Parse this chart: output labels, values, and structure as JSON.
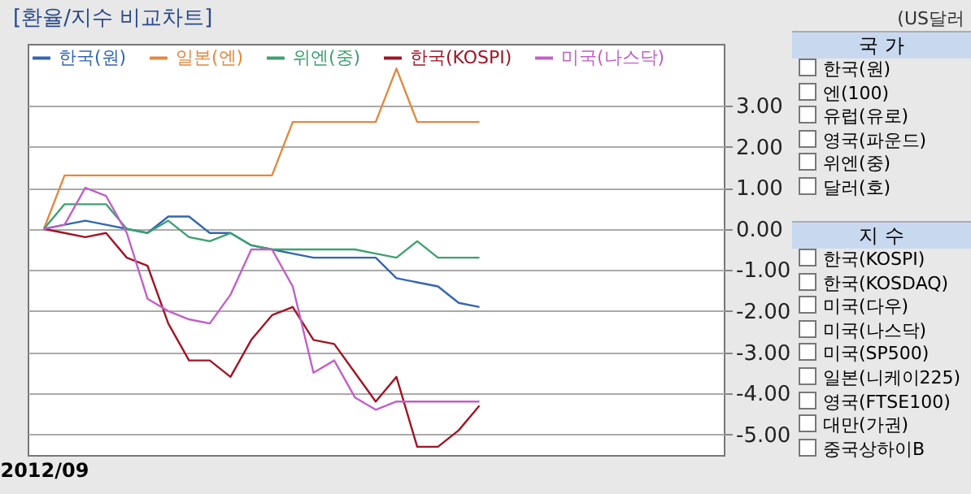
{
  "chart_data": [
    {
      "type": "line",
      "title": "[환율/지수 비교차트]",
      "annotations": [
        "(US달러"
      ],
      "categories": [
        "2012/09",
        null,
        null,
        null,
        null,
        null,
        null,
        null,
        null,
        null,
        null,
        null,
        null,
        null,
        null,
        null,
        null,
        null,
        null,
        null,
        null,
        null,
        null,
        null,
        null,
        null,
        null,
        null,
        null,
        null,
        null,
        null,
        null
      ],
      "series": [
        {
          "name": "한국(원)",
          "color": "#3366b0",
          "values": [
            0,
            0.1,
            0.2,
            0.1,
            0,
            -0.1,
            0.3,
            0.3,
            -0.1,
            -0.1,
            -0.4,
            -0.5,
            -0.6,
            -0.7,
            -0.7,
            -0.7,
            -0.7,
            -1.2,
            -1.3,
            -1.4,
            -1.8,
            -1.9,
            null,
            null,
            null,
            null,
            null,
            null,
            null,
            null,
            null,
            null,
            null
          ]
        },
        {
          "name": "일본(엔)",
          "color": "#e08a40",
          "values": [
            0,
            1.3,
            1.3,
            1.3,
            1.3,
            1.3,
            1.3,
            1.3,
            1.3,
            1.3,
            1.3,
            1.3,
            2.6,
            2.6,
            2.6,
            2.6,
            2.6,
            3.9,
            2.6,
            2.6,
            2.6,
            2.6,
            null,
            null,
            null,
            null,
            null,
            null,
            null,
            null,
            null,
            null,
            null
          ]
        },
        {
          "name": "위엔(중)",
          "color": "#3fa070",
          "values": [
            0,
            0.6,
            0.6,
            0.6,
            0,
            -0.1,
            0.2,
            -0.2,
            -0.3,
            -0.1,
            -0.4,
            -0.5,
            -0.5,
            -0.5,
            -0.5,
            -0.5,
            -0.6,
            -0.7,
            -0.3,
            -0.7,
            -0.7,
            -0.7,
            null,
            null,
            null,
            null,
            null,
            null,
            null,
            null,
            null,
            null,
            null
          ]
        },
        {
          "name": "한국(KOSPI)",
          "color": "#a01525",
          "values": [
            0,
            -0.1,
            -0.2,
            -0.1,
            -0.7,
            -0.9,
            -2.3,
            -3.2,
            -3.2,
            -3.6,
            -2.7,
            -2.1,
            -1.9,
            -2.7,
            -2.8,
            -3.5,
            -4.2,
            -3.6,
            -5.3,
            -5.3,
            -4.9,
            -4.3,
            null,
            null,
            null,
            null,
            null,
            null,
            null,
            null,
            null,
            null,
            null
          ]
        },
        {
          "name": "미국(나스닥)",
          "color": "#c060c8",
          "values": [
            0,
            0.1,
            1.0,
            0.8,
            -0.1,
            -1.7,
            -2.0,
            -2.2,
            -2.3,
            -1.6,
            -0.5,
            -0.5,
            -1.4,
            -3.5,
            -3.2,
            -4.1,
            -4.4,
            -4.2,
            -4.2,
            -4.2,
            -4.2,
            -4.2,
            null,
            null,
            null,
            null,
            null,
            null,
            null,
            null,
            null,
            null,
            null
          ]
        }
      ],
      "ylim": [
        -5.5,
        4.5
      ],
      "yticks": [
        {
          "value": -5,
          "label": "-5.00"
        },
        {
          "value": -4,
          "label": "-4.00"
        },
        {
          "value": -3,
          "label": "-3.00"
        },
        {
          "value": -2,
          "label": "-2.00"
        },
        {
          "value": -1,
          "label": "-1.00"
        },
        {
          "value": 0,
          "label": "0.00"
        },
        {
          "value": 1,
          "label": "1.00"
        },
        {
          "value": 2,
          "label": "2.00"
        },
        {
          "value": 3,
          "label": "3.00"
        }
      ],
      "grid": "y",
      "legend": "top left"
    },
    {
      "type": "other",
      "title": "국 가",
      "annotations": [
        "한국(원)",
        "엔(100)",
        "유럽(유로)",
        "영국(파운드)",
        "위엔(중)",
        "달러(호)"
      ]
    },
    {
      "type": "other",
      "title": "지 수",
      "annotations": [
        "한국(KOSPI)",
        "한국(KOSDAQ)",
        "미국(다우)",
        "미국(나스닥)",
        "미국(SP500)",
        "일본(니케이225)",
        "영국(FTSE100)",
        "대만(가권)",
        "중국상하이B"
      ]
    }
  ]
}
